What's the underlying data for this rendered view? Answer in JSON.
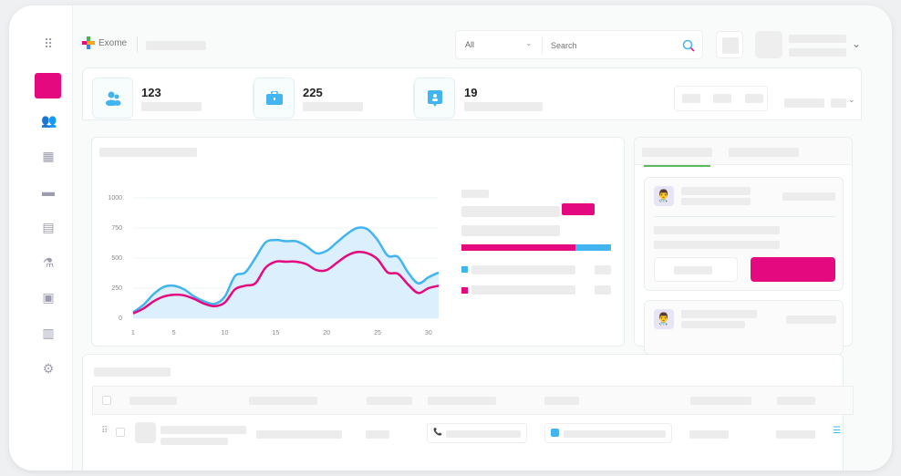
{
  "header": {
    "brand": "Exome",
    "filter_value": "All",
    "search_placeholder": "Search"
  },
  "sidebar": {
    "icons": [
      "apps-grid-icon",
      "active-item",
      "users-icon",
      "calendar-icon",
      "briefcase-icon",
      "clipboard-icon",
      "microscope-icon",
      "report-icon",
      "schedule-icon",
      "gear-icon"
    ],
    "active_color": "#e5097f"
  },
  "stats": [
    {
      "value": "123",
      "icon": "users-icon"
    },
    {
      "value": "225",
      "icon": "briefcase-icon"
    },
    {
      "value": "19",
      "icon": "badge-icon"
    }
  ],
  "colors": {
    "accent": "#e5097f",
    "blue": "#42b4f0",
    "area": "#dbeffc",
    "tab_underline": "#5cb85c"
  },
  "chart_data": {
    "type": "line",
    "x": [
      1,
      2,
      3,
      4,
      5,
      6,
      7,
      8,
      9,
      10,
      11,
      12,
      13,
      14,
      15,
      16,
      17,
      18,
      19,
      20,
      21,
      22,
      23,
      24,
      25,
      26,
      27,
      28,
      29,
      30,
      31
    ],
    "x_ticks": [
      "1",
      "5",
      "10",
      "15",
      "20",
      "25",
      "30"
    ],
    "y_ticks": [
      "1000",
      "750",
      "500",
      "250",
      "0"
    ],
    "ylim": [
      0,
      1000
    ],
    "grid": true,
    "series": [
      {
        "color": "#42b4f0",
        "fill": true,
        "values": [
          50,
          110,
          200,
          260,
          270,
          240,
          180,
          140,
          120,
          180,
          350,
          380,
          500,
          630,
          650,
          640,
          640,
          600,
          540,
          560,
          630,
          700,
          750,
          740,
          650,
          520,
          510,
          380,
          290,
          340,
          380
        ]
      },
      {
        "color": "#e5097f",
        "fill": false,
        "values": [
          40,
          80,
          140,
          180,
          195,
          190,
          160,
          120,
          100,
          130,
          240,
          270,
          290,
          420,
          470,
          470,
          470,
          450,
          400,
          400,
          460,
          520,
          550,
          540,
          490,
          380,
          370,
          280,
          210,
          250,
          270
        ]
      }
    ]
  }
}
